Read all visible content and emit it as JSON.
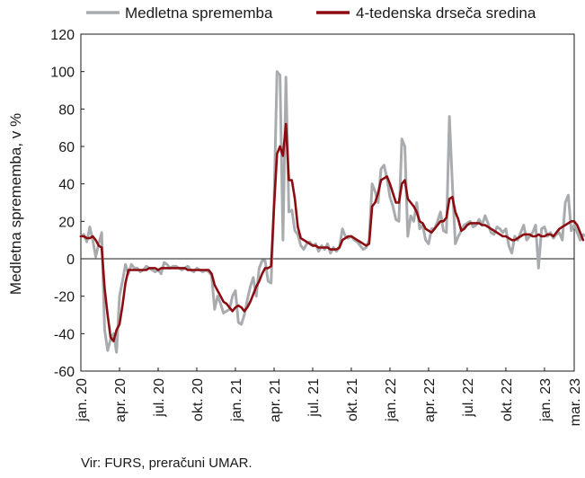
{
  "chart_data": {
    "type": "line",
    "title": "",
    "ylabel": "Medletna sprememba, v %",
    "xlabel": "",
    "ylim": [
      -60,
      120
    ],
    "yticks": [
      -60,
      -40,
      -20,
      0,
      20,
      40,
      60,
      80,
      100,
      120
    ],
    "x_labels": [
      "jan. 20",
      "apr. 20",
      "jul. 20",
      "okt. 20",
      "jan. 21",
      "apr. 21",
      "jul. 21",
      "okt. 21",
      "jan. 22",
      "apr. 22",
      "jul. 22",
      "okt. 22",
      "jan. 23",
      "mar. 23"
    ],
    "x_range": [
      0,
      166
    ],
    "legend_position": "top",
    "grid": false,
    "series": [
      {
        "name": "Medletna sprememba",
        "color": "#a9acaf",
        "values": [
          12,
          13,
          9,
          17,
          10,
          1,
          8,
          14,
          -38,
          -49,
          -43,
          -40,
          -50,
          -20,
          -12,
          -3,
          -8,
          -3,
          -5,
          -5,
          -7,
          -6,
          -4,
          -5,
          -6,
          -7,
          -6,
          -8,
          -2,
          -3,
          -5,
          -4,
          -4,
          -5,
          -6,
          -5,
          -4,
          -6,
          -7,
          -5,
          -6,
          -7,
          -6,
          -7,
          -9,
          -27,
          -20,
          -24,
          -29,
          -28,
          -27,
          -20,
          -17,
          -34,
          -35,
          -30,
          -22,
          -15,
          -10,
          -20,
          -5,
          -1,
          -1,
          -12,
          -13,
          30,
          100,
          98,
          10,
          97,
          25,
          26,
          15,
          13,
          7,
          5,
          8,
          9,
          7,
          8,
          4,
          7,
          5,
          8,
          3,
          6,
          4,
          6,
          16,
          12,
          11,
          12,
          10,
          9,
          7,
          5,
          6,
          10,
          40,
          36,
          30,
          48,
          50,
          43,
          33,
          28,
          21,
          20,
          64,
          60,
          12,
          23,
          20,
          30,
          16,
          18,
          10,
          8,
          16,
          16,
          20,
          25,
          15,
          14,
          76,
          40,
          8,
          12,
          15,
          18,
          19,
          20,
          17,
          18,
          21,
          18,
          23,
          19,
          14,
          13,
          17,
          16,
          14,
          16,
          7,
          3,
          12,
          10,
          14,
          18,
          10,
          12,
          14,
          18,
          -5,
          16,
          17,
          12,
          14,
          11,
          13,
          14,
          10,
          30,
          34,
          15,
          18,
          14,
          10,
          13,
          12,
          13,
          10,
          2
        ]
      },
      {
        "name": "4-tedenska drseča sredina",
        "color": "#8b0d12",
        "values": [
          12,
          12,
          11,
          11,
          12,
          10,
          7,
          6,
          -16,
          -30,
          -42,
          -44,
          -38,
          -35,
          -25,
          -13,
          -6,
          -6,
          -6,
          -6,
          -6,
          -6,
          -6,
          -5,
          -5,
          -5,
          -6,
          -5,
          -5,
          -5,
          -5,
          -5,
          -5,
          -5,
          -5,
          -5,
          -6,
          -6,
          -6,
          -6,
          -6,
          -6,
          -6,
          -6,
          -8,
          -14,
          -17,
          -20,
          -23,
          -24,
          -26,
          -28,
          -26,
          -25,
          -26,
          -28,
          -26,
          -23,
          -19,
          -15,
          -12,
          -8,
          -5,
          -5,
          -4,
          28,
          56,
          60,
          55,
          72,
          42,
          42,
          32,
          17,
          11,
          10,
          9,
          8,
          7,
          7,
          6,
          6,
          6,
          6,
          5,
          5,
          5,
          6,
          10,
          11,
          12,
          12,
          11,
          10,
          9,
          8,
          7,
          8,
          28,
          30,
          35,
          42,
          43,
          44,
          40,
          35,
          30,
          30,
          40,
          42,
          32,
          30,
          28,
          25,
          20,
          19,
          16,
          15,
          14,
          16,
          18,
          20,
          20,
          22,
          32,
          33,
          25,
          21,
          15,
          16,
          18,
          19,
          19,
          19,
          19,
          18,
          18,
          17,
          16,
          15,
          14,
          13,
          12,
          12,
          11,
          10,
          10,
          11,
          12,
          13,
          13,
          13,
          12,
          12,
          13,
          12,
          12,
          13,
          13,
          12,
          14,
          16,
          17,
          18,
          19,
          20,
          20,
          18,
          14,
          10
        ]
      }
    ]
  },
  "source_note": "Vir: FURS, preračuni UMAR."
}
